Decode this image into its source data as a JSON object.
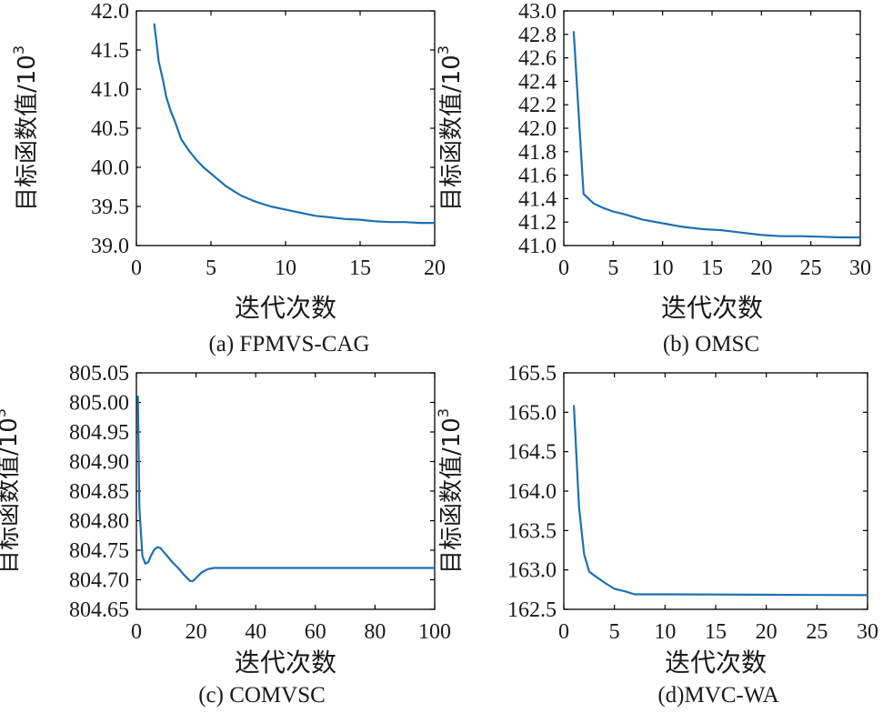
{
  "line_color": "#1f6fb2",
  "chart_data": [
    {
      "type": "line",
      "caption": "(a) FPMVS-CAG",
      "xlabel": "迭代次数",
      "ylabel": "目标函数值/10",
      "ylabel_exp": "3",
      "xlim": [
        0,
        20
      ],
      "ylim": [
        39.0,
        42.0
      ],
      "xticks": [
        0,
        5,
        10,
        15,
        20
      ],
      "yticks": [
        "39.0",
        "39.5",
        "40.0",
        "40.5",
        "41.0",
        "41.5",
        "42.0"
      ],
      "grid": false,
      "x": [
        1.2,
        1.5,
        1.8,
        2.0,
        2.3,
        2.6,
        3.0,
        3.5,
        4.0,
        4.5,
        5.0,
        5.5,
        6.0,
        6.5,
        7.0,
        8.0,
        9.0,
        10.0,
        11.0,
        12.0,
        13.0,
        14.0,
        15.0,
        16.0,
        17.0,
        18.0,
        19.0,
        20.0
      ],
      "y": [
        41.83,
        41.35,
        41.1,
        40.9,
        40.72,
        40.58,
        40.36,
        40.22,
        40.1,
        40.0,
        39.92,
        39.84,
        39.76,
        39.7,
        39.64,
        39.56,
        39.5,
        39.46,
        39.42,
        39.38,
        39.36,
        39.34,
        39.33,
        39.31,
        39.3,
        39.3,
        39.29,
        39.29
      ]
    },
    {
      "type": "line",
      "caption": "(b) OMSC",
      "xlabel": "迭代次数",
      "ylabel": "目标函数值/10",
      "ylabel_exp": "3",
      "xlim": [
        0,
        30
      ],
      "ylim": [
        41.0,
        43.0
      ],
      "xticks": [
        0,
        5,
        10,
        15,
        20,
        25,
        30
      ],
      "yticks": [
        "41.0",
        "41.2",
        "41.4",
        "41.6",
        "41.8",
        "42.0",
        "42.2",
        "42.4",
        "42.6",
        "42.8",
        "43.0"
      ],
      "grid": false,
      "x": [
        1,
        2,
        3,
        4,
        5,
        6,
        8,
        10,
        12,
        14,
        16,
        18,
        20,
        22,
        24,
        26,
        28,
        30
      ],
      "y": [
        42.82,
        41.44,
        41.36,
        41.32,
        41.29,
        41.27,
        41.22,
        41.19,
        41.16,
        41.14,
        41.13,
        41.11,
        41.09,
        41.08,
        41.08,
        41.075,
        41.07,
        41.07
      ]
    },
    {
      "type": "line",
      "caption": "(c) COMVSC",
      "xlabel": "迭代次数",
      "ylabel": "目标函数值/10",
      "ylabel_exp": "3",
      "xlim": [
        0,
        100
      ],
      "ylim": [
        804.65,
        805.05
      ],
      "xticks": [
        0,
        20,
        40,
        60,
        80,
        100
      ],
      "yticks": [
        "804.65",
        "804.70",
        "804.75",
        "804.80",
        "804.85",
        "804.90",
        "804.95",
        "805.00",
        "805.05"
      ],
      "grid": false,
      "x": [
        0.5,
        1,
        2,
        3,
        4,
        5,
        6,
        7,
        8,
        9,
        10,
        12,
        14,
        16,
        18,
        19,
        20,
        22,
        24,
        26,
        30,
        40,
        50,
        60,
        70,
        80,
        90,
        100
      ],
      "y": [
        805.01,
        804.82,
        804.74,
        804.727,
        804.73,
        804.742,
        804.751,
        804.755,
        804.754,
        804.748,
        804.742,
        804.73,
        804.72,
        804.708,
        804.698,
        804.698,
        804.703,
        804.713,
        804.718,
        804.72,
        804.72,
        804.72,
        804.72,
        804.72,
        804.72,
        804.72,
        804.72,
        804.72
      ]
    },
    {
      "type": "line",
      "caption": "(d)MVC-WA",
      "xlabel": "迭代次数",
      "ylabel": "目标函数值/10",
      "ylabel_exp": "3",
      "xlim": [
        0,
        30
      ],
      "ylim": [
        162.5,
        165.5
      ],
      "xticks": [
        0,
        5,
        10,
        15,
        20,
        25,
        30
      ],
      "yticks": [
        "162.5",
        "163.0",
        "163.5",
        "164.0",
        "164.5",
        "165.0",
        "165.5"
      ],
      "grid": false,
      "x": [
        1,
        1.5,
        2,
        2.5,
        3,
        4,
        5,
        6,
        7,
        8,
        10,
        15,
        20,
        25,
        30
      ],
      "y": [
        165.08,
        163.8,
        163.2,
        162.98,
        162.93,
        162.84,
        162.76,
        162.73,
        162.69,
        162.69,
        162.69,
        162.688,
        162.685,
        162.682,
        162.68
      ]
    }
  ]
}
